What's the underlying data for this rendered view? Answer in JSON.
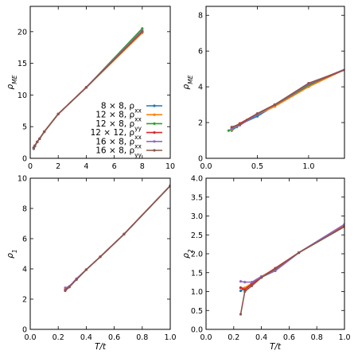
{
  "chart_data": [
    {
      "type": "line",
      "panel": "top-left",
      "xlabel": "",
      "ylabel": "ρME",
      "xlim": [
        0,
        10
      ],
      "ylim": [
        0,
        24
      ],
      "xticks": [
        0,
        2,
        4,
        6,
        8,
        10
      ],
      "yticks": [
        0,
        5,
        10,
        15,
        20
      ],
      "legend": "bottom-right",
      "series": [
        {
          "name": "8 × 8, ρxx",
          "color": "#1f77b4",
          "x": [
            0.25,
            0.33,
            0.5,
            0.67,
            1,
            2,
            4,
            8
          ],
          "y": [
            1.5,
            1.9,
            2.6,
            3.1,
            4.2,
            7.0,
            11.2,
            19.9
          ]
        },
        {
          "name": "12 × 8, ρxx",
          "color": "#ff7f0e",
          "x": [
            0.25,
            0.33,
            0.5,
            0.67,
            1,
            2,
            4,
            8
          ],
          "y": [
            1.6,
            2.0,
            2.6,
            3.1,
            4.2,
            7.0,
            11.2,
            19.8
          ]
        },
        {
          "name": "12 × 8, ρyy",
          "color": "#2ca02c",
          "x": [
            0.25,
            0.33,
            0.5,
            0.67,
            1,
            2,
            4,
            8
          ],
          "y": [
            1.6,
            2.0,
            2.6,
            3.1,
            4.2,
            7.0,
            11.2,
            20.5
          ]
        },
        {
          "name": "12 × 12, ρxx",
          "color": "#d62728",
          "x": [
            0.25,
            0.33,
            0.5,
            0.67,
            1,
            2,
            4,
            8
          ],
          "y": [
            1.7,
            2.0,
            2.6,
            3.1,
            4.2,
            7.0,
            11.2,
            20.1
          ]
        },
        {
          "name": "16 × 8, ρxx",
          "color": "#9467bd",
          "x": [
            0.25,
            0.33,
            0.5,
            0.67,
            1,
            2,
            4,
            8
          ],
          "y": [
            1.6,
            2.0,
            2.6,
            3.1,
            4.2,
            7.0,
            11.2,
            20.2
          ]
        },
        {
          "name": "16 × 8, ρyy",
          "color": "#8c564b",
          "x": [
            0.25,
            0.33,
            0.5,
            0.67,
            1,
            2,
            4,
            8
          ],
          "y": [
            1.7,
            2.0,
            2.6,
            3.1,
            4.2,
            7.0,
            11.2,
            20.0
          ]
        }
      ]
    },
    {
      "type": "line",
      "panel": "top-right",
      "xlabel": "",
      "ylabel": "ρME",
      "xlim": [
        0,
        1.35
      ],
      "ylim": [
        0,
        8.5
      ],
      "xticks": [
        0,
        0.5,
        1
      ],
      "xtick_labels": [
        "0.0",
        "0.5",
        "1.0"
      ],
      "yticks": [
        0,
        2,
        4,
        6,
        8
      ],
      "series": [
        {
          "color": "#1f77b4",
          "x": [
            0.25,
            0.33,
            0.5,
            0.67,
            1,
            1.4
          ],
          "y": [
            1.55,
            1.9,
            2.35,
            2.95,
            4.05,
            5.1
          ]
        },
        {
          "color": "#ff7f0e",
          "x": [
            0.25,
            0.33,
            0.5,
            0.67,
            1,
            1.4
          ],
          "y": [
            1.6,
            1.95,
            2.45,
            2.9,
            4.0,
            5.1
          ]
        },
        {
          "color": "#2ca02c",
          "x": [
            0.22,
            0.3,
            0.4,
            0.5,
            0.67,
            1,
            1.4
          ],
          "y": [
            1.55,
            1.75,
            2.15,
            2.5,
            3.0,
            4.1,
            5.1
          ]
        },
        {
          "color": "#d62728",
          "x": [
            0.25,
            0.33,
            0.5,
            0.67,
            1,
            1.4
          ],
          "y": [
            1.7,
            1.95,
            2.5,
            3.0,
            4.15,
            5.05
          ]
        },
        {
          "color": "#9467bd",
          "x": [
            0.25,
            0.33,
            0.5,
            0.67,
            1,
            1.4
          ],
          "y": [
            1.65,
            1.85,
            2.45,
            3.0,
            4.15,
            5.1
          ]
        },
        {
          "color": "#8c564b",
          "x": [
            0.25,
            0.33,
            0.5,
            0.67,
            1,
            1.4
          ],
          "y": [
            1.75,
            1.9,
            2.5,
            3.0,
            4.2,
            5.05
          ]
        }
      ]
    },
    {
      "type": "line",
      "panel": "bottom-left",
      "xlabel": "T/t",
      "ylabel": "ρ1",
      "xlim": [
        0,
        1
      ],
      "ylim": [
        0,
        10
      ],
      "xticks": [
        0,
        0.2,
        0.4,
        0.6,
        0.8,
        1.0
      ],
      "xtick_labels": [
        "0.0",
        "0.2",
        "0.4",
        "0.6",
        "0.8",
        "1.0"
      ],
      "yticks": [
        0,
        2,
        4,
        6,
        8,
        10
      ],
      "series": [
        {
          "color": "#1f77b4",
          "x": [
            0.25,
            0.33,
            0.4,
            0.5,
            0.67,
            1
          ],
          "y": [
            2.6,
            3.3,
            3.95,
            4.8,
            6.3,
            9.5
          ]
        },
        {
          "color": "#ff7f0e",
          "x": [
            0.25,
            0.33,
            0.4,
            0.5,
            0.67,
            1
          ],
          "y": [
            2.6,
            3.3,
            3.95,
            4.8,
            6.3,
            9.5
          ]
        },
        {
          "color": "#2ca02c",
          "x": [
            0.25,
            0.33,
            0.4,
            0.5,
            0.67,
            1
          ],
          "y": [
            2.6,
            3.3,
            3.95,
            4.8,
            6.3,
            9.5
          ]
        },
        {
          "color": "#d62728",
          "x": [
            0.25,
            0.33,
            0.4,
            0.5,
            0.67,
            1
          ],
          "y": [
            2.6,
            3.3,
            3.95,
            4.8,
            6.3,
            9.5
          ]
        },
        {
          "color": "#9467bd",
          "x": [
            0.25,
            0.28,
            0.33,
            0.4,
            0.5,
            0.67,
            1
          ],
          "y": [
            2.75,
            2.85,
            3.35,
            3.95,
            4.8,
            6.3,
            9.5
          ]
        },
        {
          "color": "#8c564b",
          "x": [
            0.25,
            0.28,
            0.33,
            0.4,
            0.5,
            0.67,
            1
          ],
          "y": [
            2.55,
            2.8,
            3.3,
            3.95,
            4.8,
            6.3,
            9.5
          ]
        }
      ]
    },
    {
      "type": "line",
      "panel": "bottom-right",
      "xlabel": "T/t",
      "ylabel": "ρ2",
      "xlim": [
        0,
        1
      ],
      "ylim": [
        0,
        4
      ],
      "xticks": [
        0,
        0.2,
        0.4,
        0.6,
        0.8,
        1.0
      ],
      "xtick_labels": [
        "0.0",
        "0.2",
        "0.4",
        "0.6",
        "0.8",
        "1.0"
      ],
      "yticks": [
        0,
        0.5,
        1,
        1.5,
        2,
        2.5,
        3,
        3.5,
        4
      ],
      "ytick_labels": [
        "0.0",
        "0.5",
        "1.0",
        "1.5",
        "2.0",
        "2.5",
        "3.0",
        "3.5",
        "4.0"
      ],
      "series": [
        {
          "color": "#1f77b4",
          "x": [
            0.25,
            0.28,
            0.33,
            0.4,
            0.5,
            0.67,
            1
          ],
          "y": [
            1.02,
            1.08,
            1.2,
            1.38,
            1.55,
            2.03,
            2.72
          ]
        },
        {
          "color": "#ff7f0e",
          "x": [
            0.25,
            0.28,
            0.33,
            0.4,
            0.5,
            0.67,
            1
          ],
          "y": [
            1.1,
            1.1,
            1.22,
            1.4,
            1.6,
            2.03,
            2.75
          ]
        },
        {
          "color": "#2ca02c",
          "x": [
            0.25,
            0.28,
            0.33,
            0.4,
            0.5,
            0.67,
            1
          ],
          "y": [
            1.1,
            1.05,
            1.2,
            1.38,
            1.57,
            2.03,
            2.72
          ]
        },
        {
          "color": "#d62728",
          "x": [
            0.25,
            0.28,
            0.33,
            0.4,
            0.5,
            0.67,
            1
          ],
          "y": [
            1.1,
            1.05,
            1.2,
            1.38,
            1.62,
            2.03,
            2.73
          ]
        },
        {
          "color": "#9467bd",
          "x": [
            0.25,
            0.28,
            0.33,
            0.4,
            0.5,
            0.67,
            1
          ],
          "y": [
            1.27,
            1.25,
            1.25,
            1.4,
            1.55,
            2.03,
            2.78
          ]
        },
        {
          "color": "#8c564b",
          "x": [
            0.25,
            0.28,
            0.33,
            0.4,
            0.5,
            0.67,
            1
          ],
          "y": [
            0.4,
            1.0,
            1.15,
            1.37,
            1.6,
            2.03,
            2.72
          ]
        }
      ]
    }
  ]
}
